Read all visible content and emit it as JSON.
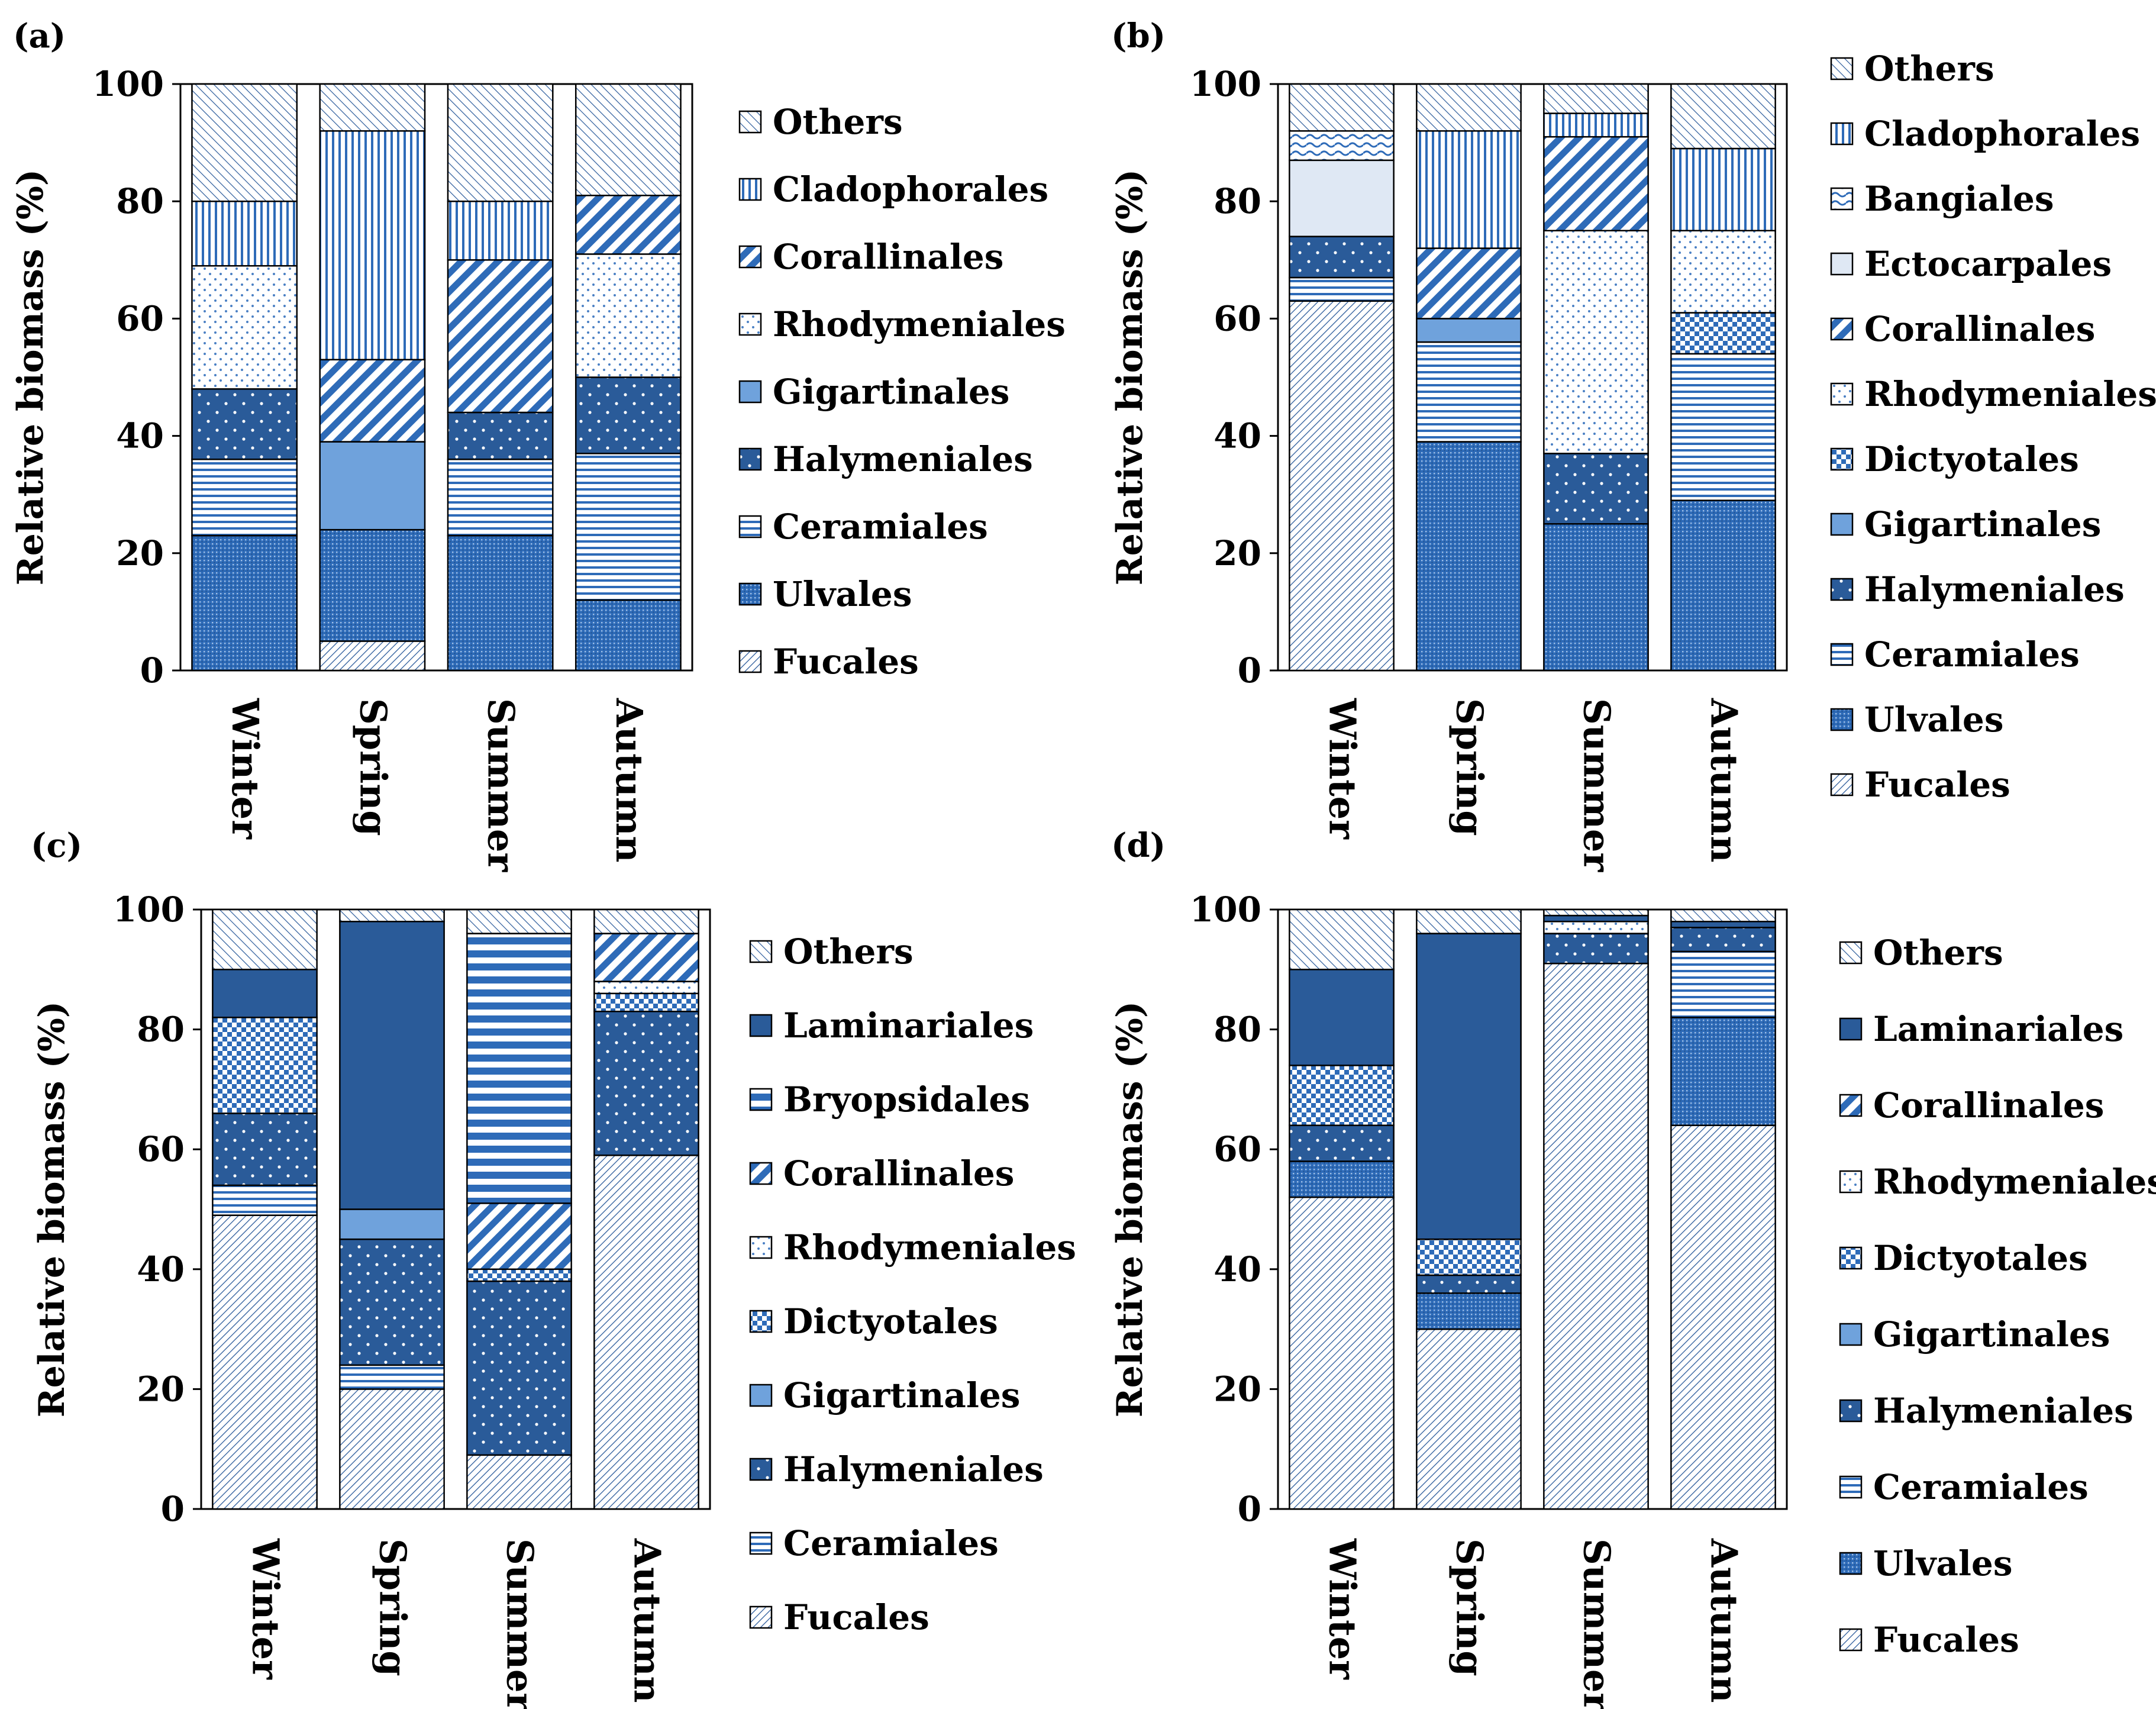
{
  "colors": {
    "dark": "#2a5b99",
    "mid": "#2e6bb8",
    "light": "#6fa2dc",
    "pale": "#dfe8f4",
    "line": "#2b5b9b",
    "border": "#000000"
  },
  "chart_data": [
    {
      "panel": "(a)",
      "type": "bar",
      "stacked": true,
      "ylabel": "Relative biomass (%)",
      "ylim": [
        0,
        100
      ],
      "yticks": [
        "0",
        "20",
        "40",
        "60",
        "80",
        "100"
      ],
      "categories": [
        "Winter",
        "Spring",
        "Summer",
        "Autumn"
      ],
      "legend_position": "right",
      "series": [
        {
          "name": "Fucales",
          "pattern": "fucales",
          "values": [
            0,
            5,
            0,
            0
          ]
        },
        {
          "name": "Ulvales",
          "pattern": "ulvales",
          "values": [
            23,
            19,
            23,
            12
          ]
        },
        {
          "name": "Ceramiales",
          "pattern": "ceramiales",
          "values": [
            13,
            0,
            13,
            25
          ]
        },
        {
          "name": "Halymeniales",
          "pattern": "halymeniales",
          "values": [
            12,
            0,
            8,
            13
          ]
        },
        {
          "name": "Gigartinales",
          "pattern": "gigartinales",
          "values": [
            0,
            15,
            0,
            0
          ]
        },
        {
          "name": "Rhodymeniales",
          "pattern": "rhodymeniales",
          "values": [
            21,
            0,
            0,
            21
          ]
        },
        {
          "name": "Corallinales",
          "pattern": "corallinales",
          "values": [
            0,
            14,
            26,
            10
          ]
        },
        {
          "name": "Cladophorales",
          "pattern": "cladophorales",
          "values": [
            11,
            39,
            10,
            0
          ]
        },
        {
          "name": "Others",
          "pattern": "others",
          "values": [
            20,
            8,
            20,
            19
          ]
        }
      ]
    },
    {
      "panel": "(b)",
      "type": "bar",
      "stacked": true,
      "ylabel": "Relative biomass (%)",
      "ylim": [
        0,
        100
      ],
      "yticks": [
        "0",
        "20",
        "40",
        "60",
        "80",
        "100"
      ],
      "categories": [
        "Winter",
        "Spring",
        "Summer",
        "Autumn"
      ],
      "legend_position": "right",
      "series": [
        {
          "name": "Fucales",
          "pattern": "fucales",
          "values": [
            63,
            0,
            0,
            0
          ]
        },
        {
          "name": "Ulvales",
          "pattern": "ulvales",
          "values": [
            0,
            39,
            25,
            29
          ]
        },
        {
          "name": "Ceramiales",
          "pattern": "ceramiales",
          "values": [
            4,
            17,
            0,
            25
          ]
        },
        {
          "name": "Halymeniales",
          "pattern": "halymeniales",
          "values": [
            7,
            0,
            12,
            0
          ]
        },
        {
          "name": "Gigartinales",
          "pattern": "gigartinales",
          "values": [
            0,
            4,
            0,
            0
          ]
        },
        {
          "name": "Dictyotales",
          "pattern": "dictyotales",
          "values": [
            0,
            0,
            0,
            7
          ]
        },
        {
          "name": "Rhodymeniales",
          "pattern": "rhodymeniales",
          "values": [
            0,
            0,
            38,
            14
          ]
        },
        {
          "name": "Corallinales",
          "pattern": "corallinales",
          "values": [
            0,
            12,
            16,
            0
          ]
        },
        {
          "name": "Ectocarpales",
          "pattern": "ectocarpales",
          "values": [
            13,
            0,
            0,
            0
          ]
        },
        {
          "name": "Bangiales",
          "pattern": "bangiales",
          "values": [
            5,
            0,
            0,
            0
          ]
        },
        {
          "name": "Cladophorales",
          "pattern": "cladophorales",
          "values": [
            0,
            20,
            4,
            14
          ]
        },
        {
          "name": "Others",
          "pattern": "others",
          "values": [
            8,
            8,
            5,
            11
          ]
        }
      ]
    },
    {
      "panel": "(c)",
      "type": "bar",
      "stacked": true,
      "ylabel": "Relative biomass (%)",
      "ylim": [
        0,
        100
      ],
      "yticks": [
        "0",
        "20",
        "40",
        "60",
        "80",
        "100"
      ],
      "categories": [
        "Winter",
        "Spring",
        "Summer",
        "Autumn"
      ],
      "legend_position": "right",
      "series": [
        {
          "name": "Fucales",
          "pattern": "fucales",
          "values": [
            49,
            20,
            9,
            59
          ]
        },
        {
          "name": "Ceramiales",
          "pattern": "ceramiales",
          "values": [
            5,
            4,
            0,
            0
          ]
        },
        {
          "name": "Halymeniales",
          "pattern": "halymeniales",
          "values": [
            12,
            21,
            29,
            24
          ]
        },
        {
          "name": "Gigartinales",
          "pattern": "gigartinales",
          "values": [
            0,
            5,
            0,
            0
          ]
        },
        {
          "name": "Dictyotales",
          "pattern": "dictyotales",
          "values": [
            16,
            0,
            2,
            3
          ]
        },
        {
          "name": "Rhodymeniales",
          "pattern": "rhodymeniales",
          "values": [
            0,
            0,
            0,
            2
          ]
        },
        {
          "name": "Corallinales",
          "pattern": "corallinales",
          "values": [
            0,
            0,
            11,
            8
          ]
        },
        {
          "name": "Bryopsidales",
          "pattern": "bryopsidales",
          "values": [
            0,
            0,
            45,
            0
          ]
        },
        {
          "name": "Laminariales",
          "pattern": "laminariales",
          "values": [
            8,
            48,
            0,
            0
          ]
        },
        {
          "name": "Others",
          "pattern": "others",
          "values": [
            10,
            2,
            4,
            4
          ]
        }
      ]
    },
    {
      "panel": "(d)",
      "type": "bar",
      "stacked": true,
      "ylabel": "Relative biomass (%)",
      "ylim": [
        0,
        100
      ],
      "yticks": [
        "0",
        "20",
        "40",
        "60",
        "80",
        "100"
      ],
      "categories": [
        "Winter",
        "Spring",
        "Summer",
        "Autumn"
      ],
      "legend_position": "right",
      "series": [
        {
          "name": "Fucales",
          "pattern": "fucales",
          "values": [
            52,
            30,
            91,
            64
          ]
        },
        {
          "name": "Ulvales",
          "pattern": "ulvales",
          "values": [
            6,
            6,
            0,
            18
          ]
        },
        {
          "name": "Ceramiales",
          "pattern": "ceramiales",
          "values": [
            0,
            0,
            0,
            11
          ]
        },
        {
          "name": "Halymeniales",
          "pattern": "halymeniales",
          "values": [
            6,
            3,
            5,
            4
          ]
        },
        {
          "name": "Gigartinales",
          "pattern": "gigartinales",
          "values": [
            0,
            0,
            0,
            0
          ]
        },
        {
          "name": "Dictyotales",
          "pattern": "dictyotales",
          "values": [
            10,
            6,
            0,
            0
          ]
        },
        {
          "name": "Rhodymeniales",
          "pattern": "rhodymeniales",
          "values": [
            0,
            0,
            2,
            0
          ]
        },
        {
          "name": "Corallinales",
          "pattern": "corallinales",
          "values": [
            0,
            0,
            0,
            0
          ]
        },
        {
          "name": "Laminariales",
          "pattern": "laminariales",
          "values": [
            16,
            51,
            1,
            1
          ]
        },
        {
          "name": "Others",
          "pattern": "others",
          "values": [
            10,
            4,
            1,
            2
          ]
        }
      ]
    }
  ],
  "legends": [
    [
      "Others",
      "Cladophorales",
      "Corallinales",
      "Rhodymeniales",
      "Gigartinales",
      "Halymeniales",
      "Ceramiales",
      "Ulvales",
      "Fucales"
    ],
    [
      "Others",
      "Cladophorales",
      "Bangiales",
      "Ectocarpales",
      "Corallinales",
      "Rhodymeniales",
      "Dictyotales",
      "Gigartinales",
      "Halymeniales",
      "Ceramiales",
      "Ulvales",
      "Fucales"
    ],
    [
      "Others",
      "Laminariales",
      "Bryopsidales",
      "Corallinales",
      "Rhodymeniales",
      "Dictyotales",
      "Gigartinales",
      "Halymeniales",
      "Ceramiales",
      "Fucales"
    ],
    [
      "Others",
      "Laminariales",
      "Corallinales",
      "Rhodymeniales",
      "Dictyotales",
      "Gigartinales",
      "Halymeniales",
      "Ceramiales",
      "Ulvales",
      "Fucales"
    ]
  ],
  "legend_patterns": [
    [
      "others",
      "cladophorales",
      "corallinales",
      "rhodymeniales",
      "gigartinales",
      "halymeniales",
      "ceramiales",
      "ulvales",
      "fucales"
    ],
    [
      "others",
      "cladophorales",
      "bangiales",
      "ectocarpales",
      "corallinales",
      "rhodymeniales",
      "dictyotales",
      "gigartinales",
      "halymeniales",
      "ceramiales",
      "ulvales",
      "fucales"
    ],
    [
      "others",
      "laminariales",
      "bryopsidales",
      "corallinales",
      "rhodymeniales",
      "dictyotales",
      "gigartinales",
      "halymeniales",
      "ceramiales",
      "fucales"
    ],
    [
      "others",
      "laminariales",
      "corallinales",
      "rhodymeniales",
      "dictyotales",
      "gigartinales",
      "halymeniales",
      "ceramiales",
      "ulvales",
      "fucales"
    ]
  ]
}
